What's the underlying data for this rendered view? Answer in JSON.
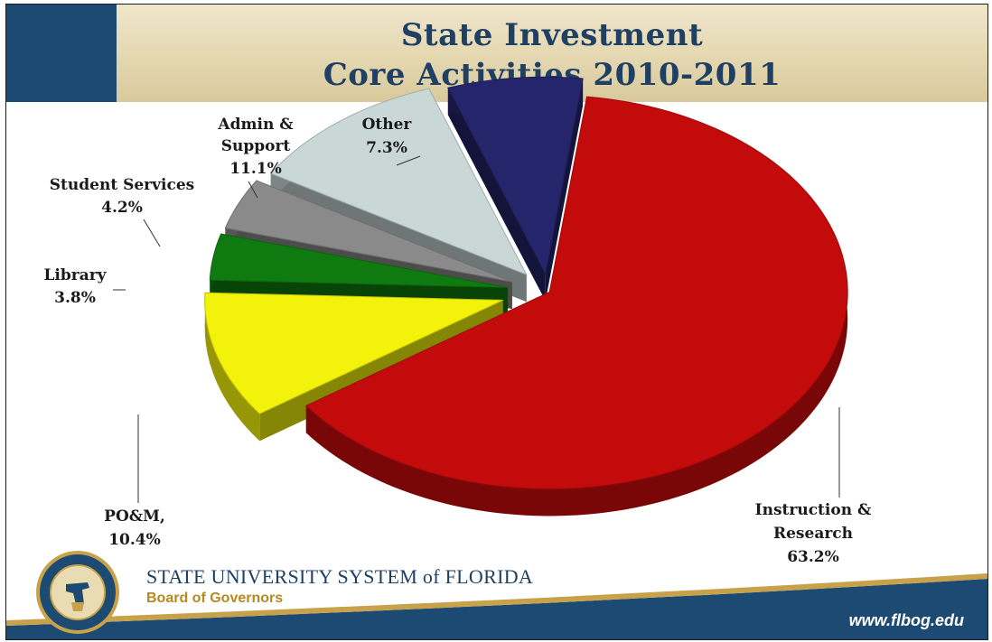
{
  "header": {
    "title_line1": "State Investment",
    "title_line2": "Core Activities 2010-2011"
  },
  "colors": {
    "instruction": "#c40b0b",
    "pom": "#f2f20a",
    "library": "#0f7a0f",
    "student_services": "#8a8a8a",
    "admin_support": "#c9d7d7",
    "other": "#25256b",
    "brand_navy": "#1d4a72",
    "brand_gold": "#b58a1e"
  },
  "chart_data": {
    "type": "pie",
    "variant": "3d-exploded",
    "title": "State Investment Core Activities 2010-2011",
    "slices": [
      {
        "label": "Instruction & Research",
        "value": 63.2,
        "display": "63.2%",
        "color": "#c40b0b"
      },
      {
        "label": "PO&M,",
        "value": 10.4,
        "display": "10.4%",
        "color": "#f2f20a"
      },
      {
        "label": "Library",
        "value": 3.8,
        "display": "3.8%",
        "color": "#0f7a0f"
      },
      {
        "label": "Student Services",
        "value": 4.2,
        "display": "4.2%",
        "color": "#8a8a8a"
      },
      {
        "label": "Admin & Support",
        "value": 11.1,
        "display": "11.1%",
        "color": "#c9d7d7"
      },
      {
        "label": "Other",
        "value": 7.3,
        "display": "7.3%",
        "color": "#25256b"
      }
    ],
    "legend": "none"
  },
  "labels": {
    "instruction_line1": "Instruction &",
    "instruction_line2": "Research",
    "instruction_pct": "63.2%",
    "pom_line1": "PO&M,",
    "pom_pct": "10.4%",
    "library_line1": "Library",
    "library_pct": "3.8%",
    "student_line1": "Student Services",
    "student_pct": "4.2%",
    "admin_line1": "Admin &",
    "admin_line2": "Support",
    "admin_pct": "11.1%",
    "other_line1": "Other",
    "other_pct": "7.3%"
  },
  "footer": {
    "system_name": "STATE UNIVERSITY SYSTEM of FLORIDA",
    "board": "Board of Governors",
    "url": "www.flbog.edu",
    "seal_text": "STATE UNIVERSITY SYSTEM OF FLORIDA · BOARD OF GOVERNORS"
  }
}
